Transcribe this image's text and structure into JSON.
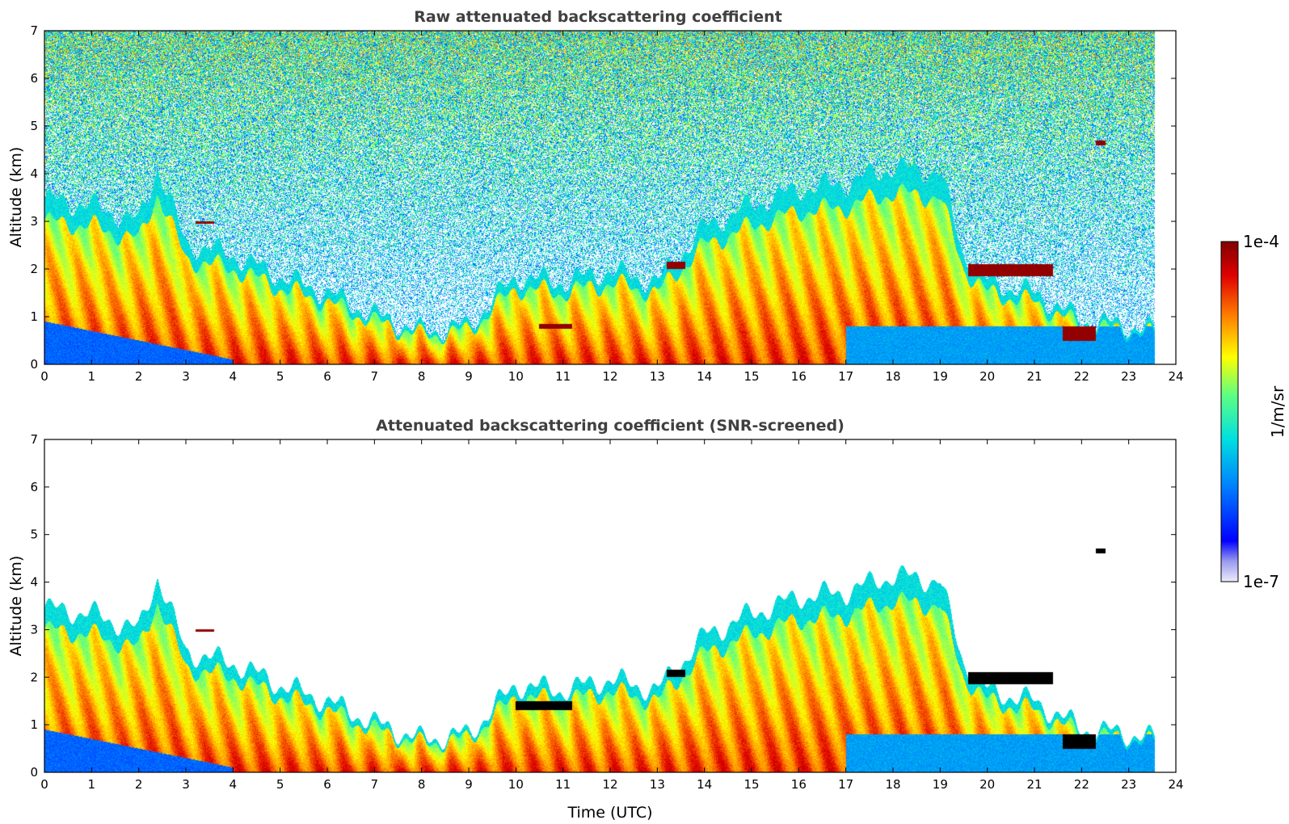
{
  "chart_data": [
    {
      "type": "heatmap",
      "title": "Raw attenuated backscattering coefficient",
      "xlabel": "",
      "ylabel": "Altitude (km)",
      "xlim": [
        0,
        24
      ],
      "ylim": [
        0,
        7
      ],
      "xticks": [
        "0",
        "1",
        "2",
        "3",
        "4",
        "5",
        "6",
        "7",
        "8",
        "9",
        "10",
        "11",
        "12",
        "13",
        "14",
        "15",
        "16",
        "17",
        "18",
        "19",
        "20",
        "21",
        "22",
        "23",
        "24"
      ],
      "yticks": [
        "0",
        "1",
        "2",
        "3",
        "4",
        "5",
        "6",
        "7"
      ],
      "data_end_time": 23.55,
      "screened": false,
      "aerosol_layer_top_km": [
        [
          0,
          3.0
        ],
        [
          1,
          2.9
        ],
        [
          2,
          2.6
        ],
        [
          2.4,
          3.6
        ],
        [
          3,
          2.2
        ],
        [
          4,
          2.0
        ],
        [
          5,
          1.6
        ],
        [
          6,
          1.3
        ],
        [
          7,
          0.9
        ],
        [
          8,
          0.6
        ],
        [
          9,
          0.7
        ],
        [
          10,
          1.6
        ],
        [
          11,
          1.5
        ],
        [
          12,
          1.7
        ],
        [
          13,
          1.5
        ],
        [
          14,
          2.5
        ],
        [
          15,
          2.9
        ],
        [
          16,
          3.2
        ],
        [
          17,
          3.3
        ],
        [
          18,
          3.6
        ],
        [
          19,
          3.5
        ],
        [
          19.5,
          2.0
        ],
        [
          20,
          1.5
        ],
        [
          21,
          1.3
        ],
        [
          22,
          0.8
        ],
        [
          23,
          0.7
        ],
        [
          23.55,
          0.6
        ]
      ],
      "features": [
        {
          "name": "elevated layer",
          "t": [
            3.2,
            3.6
          ],
          "alt": [
            2.95,
            3.0
          ]
        },
        {
          "name": "cloud",
          "t": [
            19.6,
            21.4
          ],
          "alt": [
            1.85,
            2.1
          ]
        },
        {
          "name": "cloud",
          "t": [
            21.6,
            22.3
          ],
          "alt": [
            0.5,
            0.8
          ]
        },
        {
          "name": "cloud",
          "t": [
            22.3,
            22.5
          ],
          "alt": [
            4.6,
            4.7
          ]
        },
        {
          "name": "cloud",
          "t": [
            10.5,
            11.2
          ],
          "alt": [
            0.75,
            0.85
          ]
        },
        {
          "name": "cloud",
          "t": [
            13.2,
            13.6
          ],
          "alt": [
            2.0,
            2.15
          ]
        }
      ]
    },
    {
      "type": "heatmap",
      "title": "Attenuated backscattering coefficient (SNR-screened)",
      "xlabel": "Time (UTC)",
      "ylabel": "Altitude (km)",
      "xlim": [
        0,
        24
      ],
      "ylim": [
        0,
        7
      ],
      "xticks": [
        "0",
        "1",
        "2",
        "3",
        "4",
        "5",
        "6",
        "7",
        "8",
        "9",
        "10",
        "11",
        "12",
        "13",
        "14",
        "15",
        "16",
        "17",
        "18",
        "19",
        "20",
        "21",
        "22",
        "23",
        "24"
      ],
      "yticks": [
        "0",
        "1",
        "2",
        "3",
        "4",
        "5",
        "6",
        "7"
      ],
      "data_end_time": 23.55,
      "screened": true,
      "aerosol_layer_top_km": [
        [
          0,
          3.0
        ],
        [
          1,
          2.9
        ],
        [
          2,
          2.6
        ],
        [
          2.4,
          3.6
        ],
        [
          3,
          2.2
        ],
        [
          4,
          2.0
        ],
        [
          5,
          1.6
        ],
        [
          6,
          1.3
        ],
        [
          7,
          0.9
        ],
        [
          8,
          0.6
        ],
        [
          9,
          0.7
        ],
        [
          10,
          1.6
        ],
        [
          11,
          1.5
        ],
        [
          12,
          1.7
        ],
        [
          13,
          1.5
        ],
        [
          14,
          2.5
        ],
        [
          15,
          2.9
        ],
        [
          16,
          3.2
        ],
        [
          17,
          3.3
        ],
        [
          18,
          3.6
        ],
        [
          19,
          3.5
        ],
        [
          19.5,
          2.0
        ],
        [
          20,
          1.5
        ],
        [
          21,
          1.3
        ],
        [
          22,
          0.8
        ],
        [
          23,
          0.7
        ],
        [
          23.55,
          0.6
        ]
      ],
      "features": [
        {
          "name": "elevated layer",
          "t": [
            3.2,
            3.6
          ],
          "alt": [
            2.95,
            3.0
          ]
        },
        {
          "name": "cloud",
          "t": [
            19.6,
            21.4
          ],
          "alt": [
            1.85,
            2.1
          ]
        },
        {
          "name": "cloud",
          "t": [
            21.6,
            22.3
          ],
          "alt": [
            0.5,
            0.8
          ]
        },
        {
          "name": "cloud",
          "t": [
            22.3,
            22.5
          ],
          "alt": [
            4.6,
            4.7
          ]
        },
        {
          "name": "cloud",
          "t": [
            10.0,
            11.2
          ],
          "alt": [
            1.3,
            1.5
          ]
        },
        {
          "name": "cloud",
          "t": [
            13.2,
            13.6
          ],
          "alt": [
            2.0,
            2.15
          ]
        }
      ]
    }
  ],
  "colorbar": {
    "max_label": "1e-4",
    "min_label": "1e-7",
    "unit_label": "1/m/sr",
    "scale": "log",
    "range": [
      1e-07,
      0.0001
    ]
  },
  "colors": {
    "title": "#404040",
    "no_data": "#ffffff",
    "saturated": "#000000"
  }
}
